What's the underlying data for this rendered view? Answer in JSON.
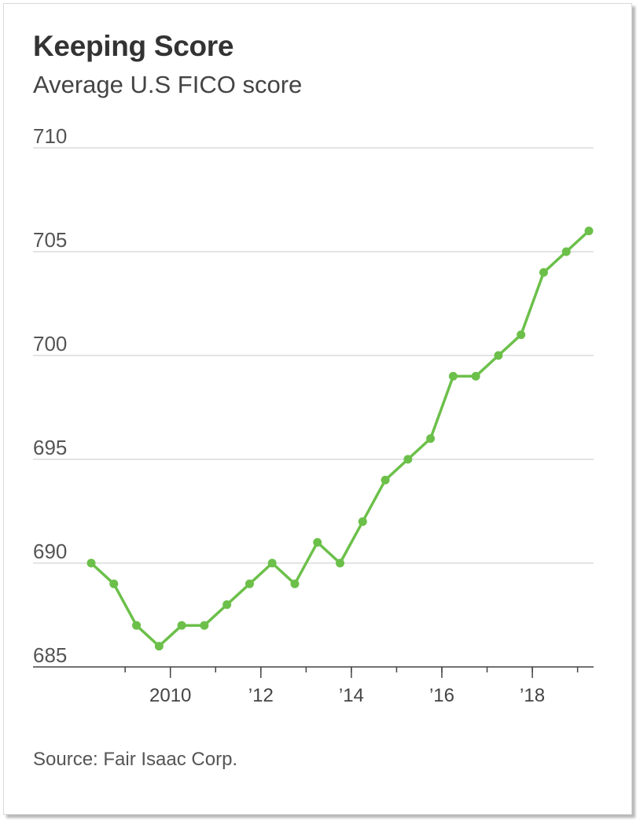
{
  "title": "Keeping Score",
  "subtitle": "Average U.S FICO score",
  "source": "Source: Fair Isaac Corp.",
  "colors": {
    "line": "#6cc04a",
    "grid": "#dcdcdc",
    "axis": "#444444"
  },
  "chart_data": {
    "type": "line",
    "title": "Keeping Score",
    "subtitle": "Average U.S FICO score",
    "xlabel": "",
    "ylabel": "",
    "ylim": [
      685,
      710
    ],
    "yticks": [
      710,
      705,
      700,
      695,
      690,
      685
    ],
    "xlim": [
      2008.0,
      2019.5
    ],
    "xticks": [
      {
        "value": 2010,
        "label": "2010"
      },
      {
        "value": 2012,
        "label": "’12"
      },
      {
        "value": 2014,
        "label": "’14"
      },
      {
        "value": 2016,
        "label": "’16"
      },
      {
        "value": 2018,
        "label": "’18"
      }
    ],
    "grid": true,
    "series": [
      {
        "x": [
          2008.25,
          2008.75,
          2009.25,
          2009.75,
          2010.25,
          2010.75,
          2011.25,
          2011.75,
          2012.25,
          2012.75,
          2013.25,
          2013.75,
          2014.25,
          2014.75,
          2015.25,
          2015.75,
          2016.25,
          2016.75,
          2017.25,
          2017.75,
          2018.25,
          2018.75,
          2019.25
        ],
        "values": [
          690,
          689,
          687,
          686,
          687,
          687,
          688,
          689,
          690,
          689,
          691,
          690,
          692,
          694,
          695,
          696,
          699,
          699,
          700,
          701,
          704,
          705,
          706
        ]
      }
    ]
  }
}
